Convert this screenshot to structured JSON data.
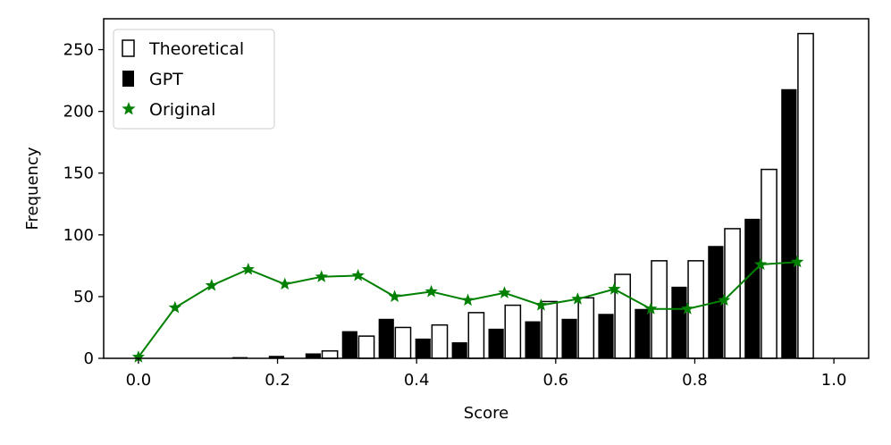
{
  "chart_data": {
    "type": "bar",
    "title": "",
    "xlabel": "Score",
    "ylabel": "Frequency",
    "xlim": [
      -0.05,
      1.05
    ],
    "ylim": [
      0,
      275
    ],
    "xticks": [
      0.0,
      0.2,
      0.4,
      0.6,
      0.8,
      1.0
    ],
    "xtick_labels": [
      "0.0",
      "0.2",
      "0.4",
      "0.6",
      "0.8",
      "1.0"
    ],
    "yticks": [
      0,
      50,
      100,
      150,
      200,
      250
    ],
    "ytick_labels": [
      "0",
      "50",
      "100",
      "150",
      "200",
      "250"
    ],
    "legend_position": "top-left",
    "grid": false,
    "x": [
      0.0,
      0.0526,
      0.1053,
      0.1579,
      0.2105,
      0.2632,
      0.3158,
      0.3684,
      0.4211,
      0.4737,
      0.5263,
      0.5789,
      0.6316,
      0.6842,
      0.7368,
      0.7895,
      0.8421,
      0.8947,
      0.9474
    ],
    "series": [
      {
        "name": "Theoretical",
        "style": "bar-outline",
        "color": "#ffffff",
        "edge_color": "#000000",
        "values": [
          0,
          0,
          0,
          0,
          0,
          6,
          18,
          25,
          27,
          37,
          43,
          46,
          49,
          68,
          79,
          79,
          105,
          153,
          263
        ]
      },
      {
        "name": "GPT",
        "style": "bar-filled",
        "color": "#000000",
        "values": [
          0,
          0,
          0,
          1,
          2,
          4,
          22,
          32,
          16,
          13,
          24,
          30,
          32,
          36,
          40,
          58,
          91,
          113,
          218
        ]
      },
      {
        "name": "Original",
        "style": "line-star",
        "color": "#008000",
        "values": [
          1,
          41,
          59,
          72,
          60,
          66,
          67,
          50,
          54,
          47,
          53,
          43,
          48,
          56,
          40,
          40,
          47,
          76,
          78
        ]
      }
    ]
  }
}
